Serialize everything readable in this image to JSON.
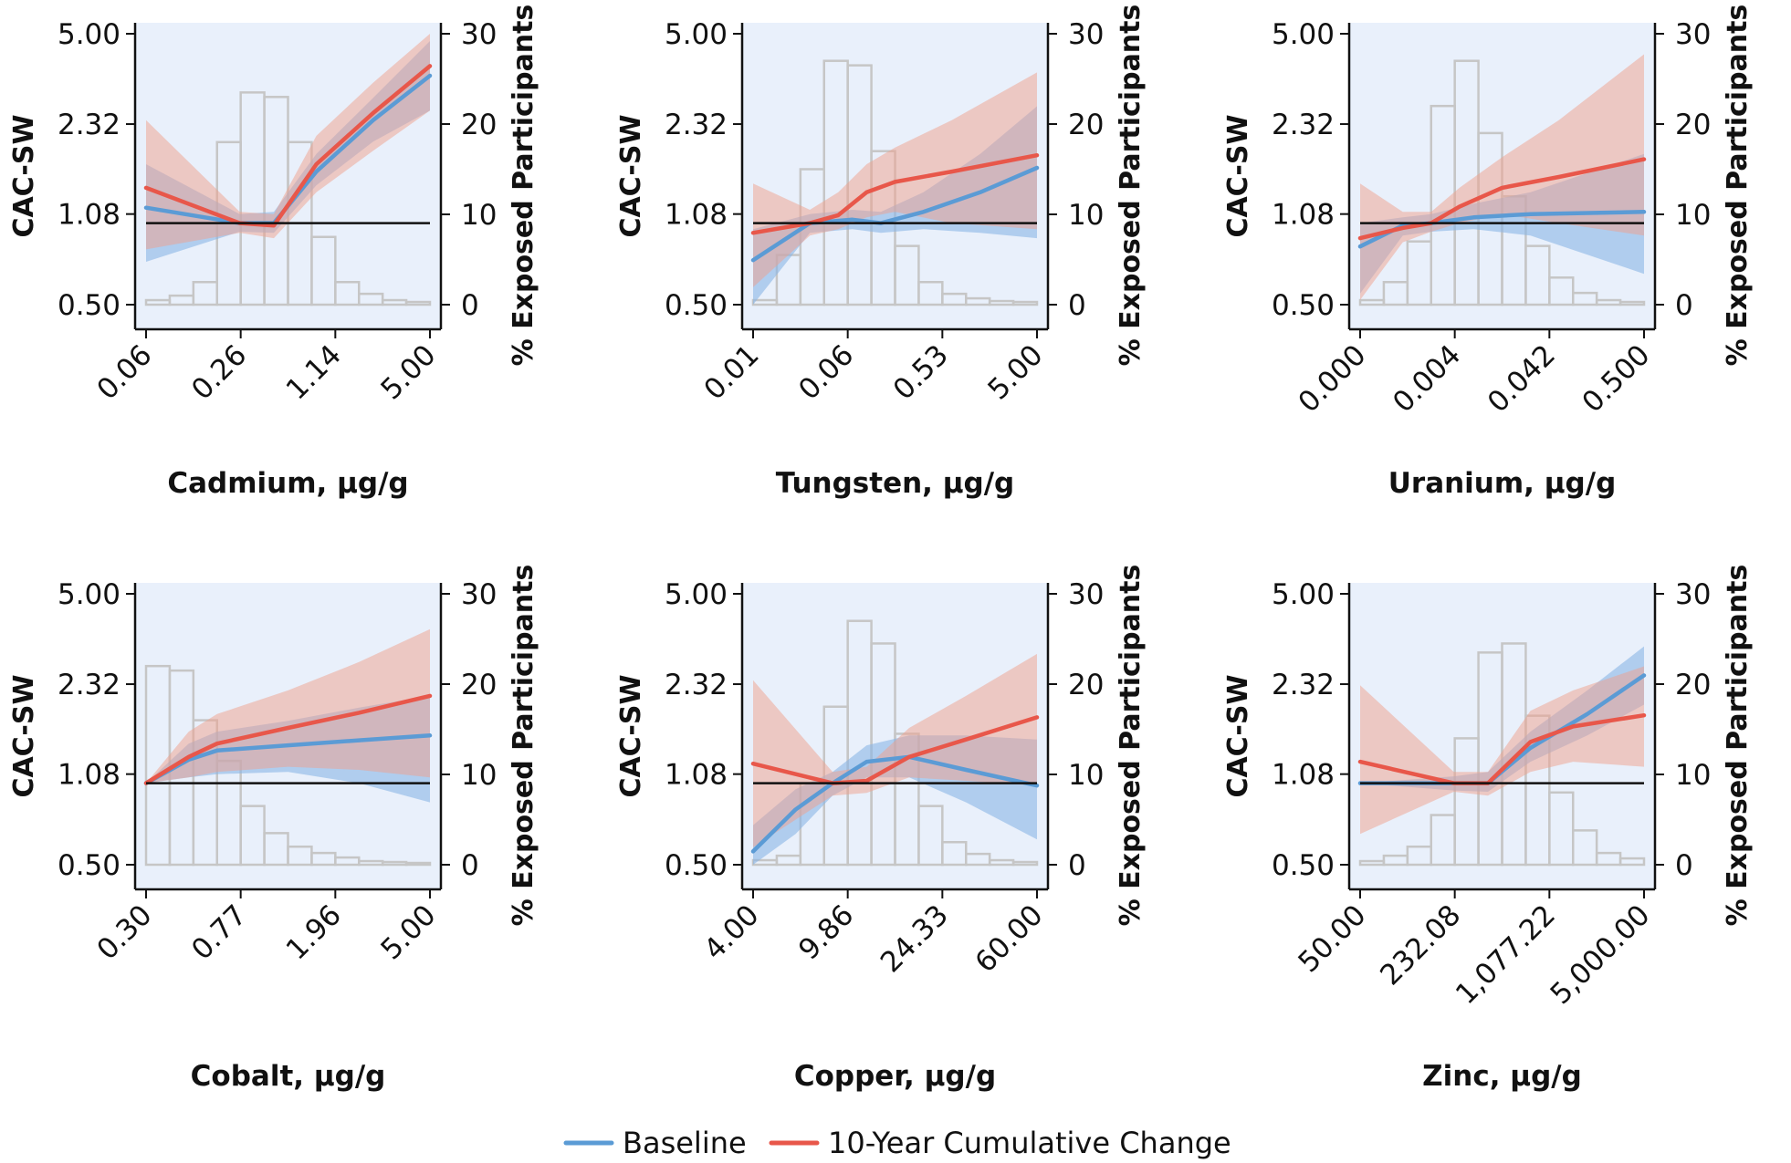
{
  "chart_data": [
    {
      "type": "line",
      "xlabel": "Cadmium, μg/g",
      "ylabel_left": "CAC-SW",
      "ylabel_right": "% Exposed Participants",
      "x_ticks": [
        "0.06",
        "0.26",
        "1.14",
        "5.00"
      ],
      "y_ticks": [
        "0.50",
        "1.08",
        "2.32",
        "5.00"
      ],
      "y2_ticks": [
        "0",
        "10",
        "20",
        "30"
      ],
      "ylim": [
        0.5,
        5.0
      ],
      "y2lim": [
        0,
        30
      ],
      "reference": 1.0,
      "histogram": [
        0.5,
        1.0,
        2.5,
        18,
        23.5,
        23,
        18,
        7.5,
        2.5,
        1.2,
        0.5,
        0.3
      ],
      "series": [
        {
          "name": "Baseline",
          "x": [
            0,
            0.33,
            0.45,
            0.6,
            0.8,
            1.0
          ],
          "y": [
            1.14,
            1.0,
            1.0,
            1.55,
            2.4,
            3.5
          ],
          "lower": [
            0.72,
            0.93,
            0.92,
            1.38,
            2.0,
            2.6
          ],
          "upper": [
            1.65,
            1.08,
            1.1,
            1.8,
            2.9,
            4.7
          ]
        },
        {
          "name": "10-Year Cumulative Change",
          "x": [
            0,
            0.33,
            0.45,
            0.6,
            0.8,
            1.0
          ],
          "y": [
            1.35,
            1.0,
            0.98,
            1.65,
            2.55,
            3.8
          ],
          "lower": [
            0.8,
            0.92,
            0.88,
            1.3,
            1.85,
            2.6
          ],
          "upper": [
            2.4,
            1.1,
            1.08,
            2.1,
            3.3,
            5.0
          ]
        }
      ]
    },
    {
      "type": "line",
      "xlabel": "Tungsten, μg/g",
      "ylabel_left": "CAC-SW",
      "ylabel_right": "% Exposed Participants",
      "x_ticks": [
        "0.01",
        "0.06",
        "0.53",
        "5.00"
      ],
      "y_ticks": [
        "0.50",
        "1.08",
        "2.32",
        "5.00"
      ],
      "y2_ticks": [
        "0",
        "10",
        "20",
        "30"
      ],
      "ylim": [
        0.5,
        5.0
      ],
      "y2lim": [
        0,
        30
      ],
      "reference": 1.0,
      "histogram": [
        0.5,
        5.5,
        15,
        27,
        26.5,
        17,
        6.5,
        2.5,
        1.2,
        0.7,
        0.4,
        0.3
      ],
      "series": [
        {
          "name": "Baseline",
          "x": [
            0,
            0.2,
            0.35,
            0.45,
            0.6,
            0.8,
            1.0
          ],
          "y": [
            0.73,
            1.0,
            1.03,
            1.0,
            1.1,
            1.3,
            1.6
          ],
          "lower": [
            0.5,
            0.92,
            0.95,
            0.92,
            0.95,
            0.92,
            0.88
          ],
          "upper": [
            0.95,
            1.08,
            1.12,
            1.1,
            1.3,
            1.8,
            2.7
          ]
        },
        {
          "name": "10-Year Cumulative Change",
          "x": [
            0,
            0.2,
            0.3,
            0.4,
            0.5,
            0.7,
            1.0
          ],
          "y": [
            0.92,
            1.0,
            1.07,
            1.3,
            1.42,
            1.55,
            1.78
          ],
          "lower": [
            0.58,
            0.9,
            0.95,
            1.05,
            1.1,
            1.0,
            0.95
          ],
          "upper": [
            1.4,
            1.12,
            1.3,
            1.65,
            1.9,
            2.4,
            3.6
          ]
        }
      ]
    },
    {
      "type": "line",
      "xlabel": "Uranium, μg/g",
      "ylabel_left": "CAC-SW",
      "ylabel_right": "% Exposed Participants",
      "x_ticks": [
        "0.000",
        "0.004",
        "0.042",
        "0.500"
      ],
      "y_ticks": [
        "0.50",
        "1.08",
        "2.32",
        "5.00"
      ],
      "y2_ticks": [
        "0",
        "10",
        "20",
        "30"
      ],
      "ylim": [
        0.5,
        5.0
      ],
      "y2lim": [
        0,
        30
      ],
      "reference": 1.0,
      "histogram": [
        0.5,
        2.5,
        7,
        22,
        27,
        19,
        12,
        6.5,
        3,
        1.3,
        0.5,
        0.3
      ],
      "series": [
        {
          "name": "Baseline",
          "x": [
            0,
            0.15,
            0.25,
            0.4,
            0.6,
            1.0
          ],
          "y": [
            0.82,
            0.98,
            1.0,
            1.05,
            1.08,
            1.1
          ],
          "lower": [
            0.55,
            0.9,
            0.93,
            0.95,
            0.9,
            0.65
          ],
          "upper": [
            1.0,
            1.05,
            1.08,
            1.18,
            1.3,
            1.8
          ]
        },
        {
          "name": "10-Year Cumulative Change",
          "x": [
            0,
            0.15,
            0.25,
            0.35,
            0.5,
            0.7,
            1.0
          ],
          "y": [
            0.88,
            0.96,
            1.0,
            1.15,
            1.35,
            1.48,
            1.72
          ],
          "lower": [
            0.52,
            0.85,
            0.93,
            1.0,
            1.08,
            1.0,
            0.9
          ],
          "upper": [
            1.4,
            1.1,
            1.1,
            1.35,
            1.75,
            2.4,
            4.2
          ]
        }
      ]
    },
    {
      "type": "line",
      "xlabel": "Cobalt, μg/g",
      "ylabel_left": "CAC-SW",
      "ylabel_right": "% Exposed Participants",
      "x_ticks": [
        "0.30",
        "0.77",
        "1.96",
        "5.00"
      ],
      "y_ticks": [
        "0.50",
        "1.08",
        "2.32",
        "5.00"
      ],
      "y2_ticks": [
        "0",
        "10",
        "20",
        "30"
      ],
      "ylim": [
        0.5,
        5.0
      ],
      "y2lim": [
        0,
        30
      ],
      "reference": 1.0,
      "histogram": [
        22,
        21.5,
        16,
        11.5,
        6.5,
        3.5,
        2,
        1.3,
        0.8,
        0.4,
        0.3,
        0.2
      ],
      "series": [
        {
          "name": "Baseline",
          "x": [
            0,
            0.15,
            0.25,
            0.5,
            0.75,
            1.0
          ],
          "y": [
            1.0,
            1.22,
            1.32,
            1.38,
            1.44,
            1.5
          ],
          "lower": [
            1.0,
            1.05,
            1.08,
            1.1,
            1.0,
            0.85
          ],
          "upper": [
            1.0,
            1.4,
            1.55,
            1.7,
            1.9,
            2.1
          ]
        },
        {
          "name": "10-Year Cumulative Change",
          "x": [
            0,
            0.15,
            0.25,
            0.5,
            0.75,
            1.0
          ],
          "y": [
            1.0,
            1.25,
            1.4,
            1.6,
            1.82,
            2.1
          ],
          "lower": [
            1.0,
            1.05,
            1.1,
            1.15,
            1.12,
            1.05
          ],
          "upper": [
            1.0,
            1.55,
            1.8,
            2.2,
            2.8,
            3.7
          ]
        }
      ]
    },
    {
      "type": "line",
      "xlabel": "Copper, μg/g",
      "ylabel_left": "CAC-SW",
      "ylabel_right": "% Exposed Participants",
      "x_ticks": [
        "4.00",
        "9.86",
        "24.33",
        "60.00"
      ],
      "y_ticks": [
        "0.50",
        "1.08",
        "2.32",
        "5.00"
      ],
      "y2_ticks": [
        "0",
        "10",
        "20",
        "30"
      ],
      "ylim": [
        0.5,
        5.0
      ],
      "y2lim": [
        0,
        30
      ],
      "reference": 1.0,
      "histogram": [
        0.5,
        1,
        9,
        17.5,
        27,
        24.5,
        14.5,
        6.5,
        2.5,
        1.2,
        0.5,
        0.3
      ],
      "series": [
        {
          "name": "Baseline",
          "x": [
            0,
            0.15,
            0.28,
            0.4,
            0.55,
            0.75,
            1.0
          ],
          "y": [
            0.56,
            0.8,
            1.0,
            1.2,
            1.25,
            1.12,
            0.98
          ],
          "lower": [
            0.5,
            0.65,
            0.9,
            1.05,
            1.05,
            0.85,
            0.62
          ],
          "upper": [
            0.7,
            0.95,
            1.1,
            1.38,
            1.5,
            1.5,
            1.45
          ]
        },
        {
          "name": "10-Year Cumulative Change",
          "x": [
            0,
            0.28,
            0.4,
            0.55,
            0.75,
            1.0
          ],
          "y": [
            1.18,
            1.0,
            1.02,
            1.25,
            1.45,
            1.75
          ],
          "lower": [
            0.58,
            0.9,
            0.92,
            1.05,
            1.02,
            0.98
          ],
          "upper": [
            2.4,
            1.1,
            1.15,
            1.6,
            2.1,
            3.0
          ]
        }
      ]
    },
    {
      "type": "line",
      "xlabel": "Zinc, μg/g",
      "ylabel_left": "CAC-SW",
      "ylabel_right": "% Exposed Participants",
      "x_ticks": [
        "50.00",
        "232.08",
        "1,077.22",
        "5,000.00"
      ],
      "y_ticks": [
        "0.50",
        "1.08",
        "2.32",
        "5.00"
      ],
      "y2_ticks": [
        "0",
        "10",
        "20",
        "30"
      ],
      "ylim": [
        0.5,
        5.0
      ],
      "y2lim": [
        0,
        30
      ],
      "reference": 1.0,
      "histogram": [
        0.4,
        1,
        2,
        5.5,
        14,
        23.5,
        24.5,
        16.5,
        8,
        3.8,
        1.3,
        0.7
      ],
      "series": [
        {
          "name": "Baseline",
          "x": [
            0,
            0.33,
            0.45,
            0.6,
            0.8,
            1.0
          ],
          "y": [
            1.0,
            1.0,
            1.0,
            1.35,
            1.8,
            2.5
          ],
          "lower": [
            1.0,
            0.94,
            0.93,
            1.2,
            1.5,
            1.95
          ],
          "upper": [
            1.0,
            1.06,
            1.1,
            1.55,
            2.2,
            3.2
          ]
        },
        {
          "name": "10-Year Cumulative Change",
          "x": [
            0,
            0.33,
            0.45,
            0.6,
            0.75,
            1.0
          ],
          "y": [
            1.2,
            1.0,
            1.0,
            1.42,
            1.62,
            1.78
          ],
          "lower": [
            0.65,
            0.93,
            0.9,
            1.1,
            1.2,
            1.15
          ],
          "upper": [
            2.3,
            1.1,
            1.1,
            1.85,
            2.2,
            2.7
          ]
        }
      ]
    }
  ],
  "legend": {
    "items": [
      {
        "label": "Baseline",
        "color": "#5b9bd5"
      },
      {
        "label": "10-Year Cumulative Change",
        "color": "#e8574a"
      }
    ]
  },
  "colors": {
    "plot_bg": "#e9f0fb",
    "baseline": "#5b9bd5",
    "baseline_band": "#8ab6e6",
    "change": "#e8574a",
    "change_band": "#f0a08c",
    "hist": "#c6c6c6"
  }
}
